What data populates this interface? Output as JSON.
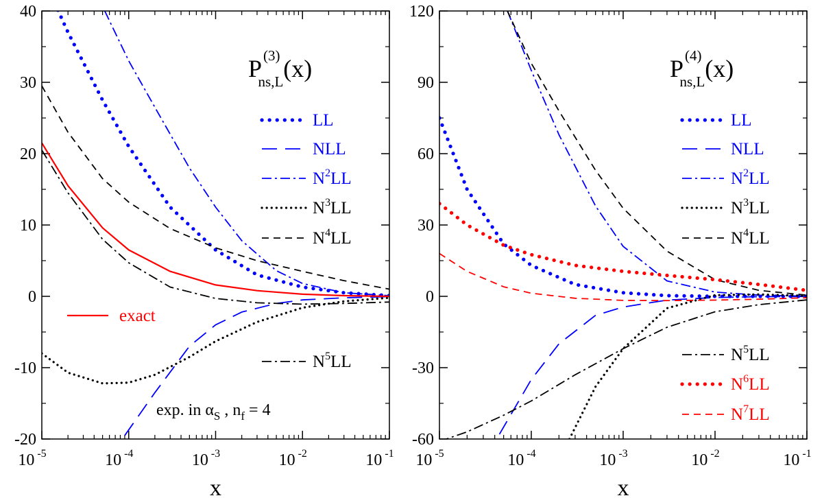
{
  "colors": {
    "blue": "#0000ff",
    "black": "#000000",
    "red": "#ff0000"
  },
  "chart_data": [
    {
      "type": "line",
      "title_main": "P",
      "title_sub": "ns,L",
      "title_sup": "(3)",
      "title_arg": "(x)",
      "xlabel": "x",
      "xscale": "log",
      "xlim": [
        1e-05,
        0.1
      ],
      "ylim": [
        -20,
        40
      ],
      "yticks": [
        "-20",
        "-10",
        "0",
        "10",
        "20",
        "30",
        "40"
      ],
      "xticks": [
        {
          "base": "10",
          "exp": "-5"
        },
        {
          "base": "10",
          "exp": "-4"
        },
        {
          "base": "10",
          "exp": "-3"
        },
        {
          "base": "10",
          "exp": "-2"
        },
        {
          "base": "10",
          "exp": "-1"
        }
      ],
      "annotation": {
        "pre": "exp. in α",
        "sub1": "S",
        "mid": " , n",
        "sub2": "f",
        "post": " = 4"
      },
      "series": [
        {
          "name": "LL",
          "color": "#0000ff",
          "style": "dotted-bold",
          "x": [
            1.1e-05,
            2e-05,
            5e-05,
            0.0001,
            0.0003,
            0.001,
            0.003,
            0.01,
            0.03,
            0.1
          ],
          "y": [
            44,
            37,
            27.5,
            21,
            12.5,
            6.5,
            3,
            1.3,
            0.5,
            0.1
          ]
        },
        {
          "name": "NLL",
          "color": "#0000ff",
          "style": "longdash",
          "x": [
            9e-05,
            0.0002,
            0.0005,
            0.001,
            0.002,
            0.005,
            0.01,
            0.03,
            0.1
          ],
          "y": [
            -19.5,
            -13.5,
            -7,
            -4,
            -2.2,
            -1,
            -0.5,
            -0.2,
            -0.05
          ]
        },
        {
          "name": "N2LL",
          "label_pre": "N",
          "label_sup": "2",
          "label_post": "LL",
          "color": "#0000ff",
          "style": "dashdot",
          "x": [
            5.3e-05,
            0.0001,
            0.0002,
            0.0005,
            0.001,
            0.002,
            0.005,
            0.01,
            0.03,
            0.1
          ],
          "y": [
            40,
            33,
            26.5,
            18,
            12.5,
            7.8,
            3.6,
            1.8,
            0.5,
            0.1
          ]
        },
        {
          "name": "N3LL",
          "label_pre": "N",
          "label_sup": "3",
          "label_post": "LL",
          "color": "#000000",
          "style": "dotted",
          "x": [
            1e-05,
            2e-05,
            5e-05,
            0.0001,
            0.0002,
            0.0005,
            0.001,
            0.003,
            0.01,
            0.03,
            0.1
          ],
          "y": [
            -8,
            -10.7,
            -12.2,
            -12.1,
            -11,
            -8.5,
            -6.3,
            -3.6,
            -1.6,
            -0.7,
            -0.2
          ]
        },
        {
          "name": "N4LL",
          "label_pre": "N",
          "label_sup": "4",
          "label_post": "LL",
          "color": "#000000",
          "style": "dashed",
          "x": [
            1e-05,
            2e-05,
            5e-05,
            0.0001,
            0.0003,
            0.001,
            0.003,
            0.01,
            0.03,
            0.1
          ],
          "y": [
            29.5,
            23,
            16.5,
            13.2,
            9.5,
            6.8,
            5,
            3.5,
            2.2,
            1
          ]
        },
        {
          "name": "N5LL",
          "label_pre": "N",
          "label_sup": "5",
          "label_post": "LL",
          "color": "#000000",
          "style": "dashdot",
          "x": [
            1e-05,
            2e-05,
            5e-05,
            0.0001,
            0.0003,
            0.001,
            0.003,
            0.01,
            0.03,
            0.1
          ],
          "y": [
            20.5,
            14.5,
            8,
            4.7,
            1.3,
            -0.3,
            -0.9,
            -1.1,
            -1,
            -0.8
          ]
        },
        {
          "name": "exact",
          "color": "#ff0000",
          "style": "solid",
          "x": [
            1e-05,
            2e-05,
            5e-05,
            0.0001,
            0.0003,
            0.001,
            0.003,
            0.01,
            0.03,
            0.1
          ],
          "y": [
            21.5,
            15.5,
            9.6,
            6.5,
            3.5,
            1.6,
            0.8,
            0.3,
            0.1,
            0
          ]
        }
      ]
    },
    {
      "type": "line",
      "title_main": "P",
      "title_sub": "ns,L",
      "title_sup": "(4)",
      "title_arg": "(x)",
      "xlabel": "x",
      "xscale": "log",
      "xlim": [
        1e-05,
        0.1
      ],
      "ylim": [
        -60,
        120
      ],
      "yticks": [
        "-60",
        "-30",
        "0",
        "30",
        "60",
        "90",
        "120"
      ],
      "xticks": [
        {
          "base": "10",
          "exp": "-5"
        },
        {
          "base": "10",
          "exp": "-4"
        },
        {
          "base": "10",
          "exp": "-3"
        },
        {
          "base": "10",
          "exp": "-2"
        },
        {
          "base": "10",
          "exp": "-1"
        }
      ],
      "series": [
        {
          "name": "LL",
          "color": "#0000ff",
          "style": "dotted-bold",
          "x": [
            1e-05,
            2e-05,
            5e-05,
            0.0001,
            0.0003,
            0.001,
            0.003,
            0.01,
            0.03,
            0.1
          ],
          "y": [
            75,
            45,
            22,
            13,
            5,
            1.5,
            0.3,
            0,
            0,
            0
          ]
        },
        {
          "name": "NLL",
          "color": "#0000ff",
          "style": "longdash",
          "x": [
            4.5e-05,
            0.0001,
            0.0002,
            0.0005,
            0.001,
            0.003,
            0.01,
            0.03,
            0.1
          ],
          "y": [
            -58,
            -35,
            -20,
            -8,
            -4.5,
            -1.6,
            -0.5,
            -0.15,
            -0.05
          ]
        },
        {
          "name": "N2LL",
          "label_pre": "N",
          "label_sup": "2",
          "label_post": "LL",
          "color": "#0000ff",
          "style": "dashdot",
          "x": [
            5.5e-05,
            0.0001,
            0.0002,
            0.0005,
            0.001,
            0.003,
            0.01,
            0.03,
            0.1
          ],
          "y": [
            120,
            95,
            68,
            38,
            21,
            6.5,
            1.8,
            0.5,
            0.1
          ]
        },
        {
          "name": "N3LL",
          "label_pre": "N",
          "label_sup": "3",
          "label_post": "LL",
          "color": "#000000",
          "style": "dotted",
          "x": [
            0.00026,
            0.0005,
            0.001,
            0.003,
            0.01,
            0.03,
            0.1
          ],
          "y": [
            -60,
            -38,
            -22,
            -5,
            0.5,
            0.8,
            0.2
          ]
        },
        {
          "name": "N4LL",
          "label_pre": "N",
          "label_sup": "4",
          "label_post": "LL",
          "color": "#000000",
          "style": "dashed",
          "x": [
            5.5e-05,
            0.0001,
            0.0002,
            0.0005,
            0.001,
            0.003,
            0.01,
            0.03,
            0.1
          ],
          "y": [
            120,
            98,
            78,
            53,
            37,
            19,
            7,
            2.5,
            0.5
          ]
        },
        {
          "name": "N5LL",
          "label_pre": "N",
          "label_sup": "5",
          "label_post": "LL",
          "color": "#000000",
          "style": "dashdot",
          "x": [
            1e-05,
            2e-05,
            5e-05,
            0.0001,
            0.0003,
            0.001,
            0.003,
            0.01,
            0.03,
            0.1
          ],
          "y": [
            -61,
            -57,
            -50,
            -44,
            -33,
            -22,
            -13,
            -6.5,
            -3.5,
            -1.5
          ]
        },
        {
          "name": "N6LL",
          "label_pre": "N",
          "label_sup": "6",
          "label_post": "LL",
          "color": "#ff0000",
          "style": "dotted-bold",
          "x": [
            1e-05,
            2e-05,
            5e-05,
            0.0001,
            0.0003,
            0.001,
            0.003,
            0.01,
            0.03,
            0.1
          ],
          "y": [
            39,
            30,
            21.5,
            17.5,
            13,
            10.5,
            8.8,
            7,
            5,
            2.5
          ]
        },
        {
          "name": "N7LL",
          "label_pre": "N",
          "label_sup": "7",
          "label_post": "LL",
          "color": "#ff0000",
          "style": "dashed",
          "x": [
            1e-05,
            2e-05,
            5e-05,
            0.0001,
            0.0003,
            0.001,
            0.003,
            0.01,
            0.03,
            0.1
          ],
          "y": [
            18,
            10.5,
            4,
            1.3,
            -0.8,
            -1.7,
            -1.8,
            -1.6,
            -1.2,
            -0.6
          ]
        }
      ]
    }
  ]
}
